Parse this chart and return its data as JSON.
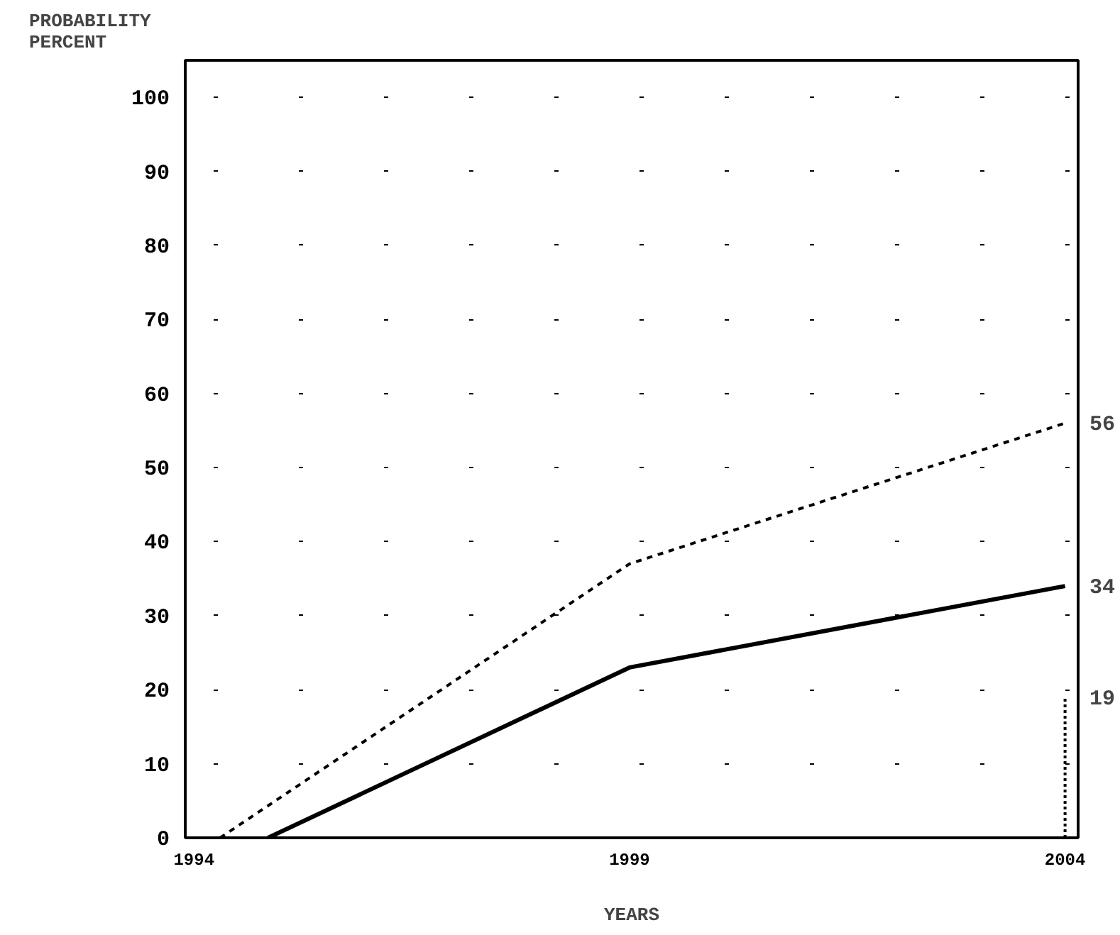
{
  "chart_data": {
    "type": "line",
    "ylabel": "PROBABILITY\nPERCENT",
    "xlabel": "YEARS",
    "xlim": [
      1993.9,
      2004.15
    ],
    "xticks": [
      1994,
      1999,
      2004
    ],
    "ylim": [
      0,
      105
    ],
    "yticks": [
      0,
      10,
      20,
      30,
      40,
      50,
      60,
      70,
      80,
      90,
      100
    ],
    "grid": "y",
    "series": [
      {
        "color": "#000000",
        "line_style": "dashed",
        "x": [
          1994.3,
          1999,
          2004
        ],
        "values": [
          0,
          37,
          56
        ],
        "value_labels": [
          null,
          null,
          "56"
        ]
      },
      {
        "color": "#000000",
        "line_style": "solid",
        "x": [
          1994.85,
          1999,
          2004
        ],
        "values": [
          0,
          23,
          34
        ],
        "value_labels": [
          null,
          null,
          "34"
        ]
      },
      {
        "color": "#000000",
        "line_style": "dotted",
        "x": [
          2004,
          2004
        ],
        "values": [
          0,
          19
        ],
        "value_labels": [
          null,
          "19"
        ]
      }
    ]
  }
}
